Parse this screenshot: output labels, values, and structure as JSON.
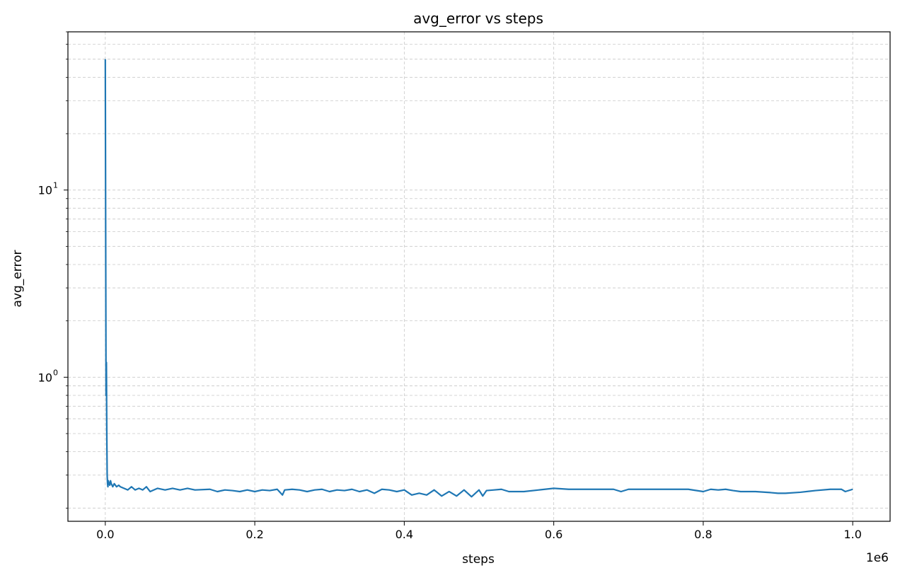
{
  "chart_data": {
    "type": "line",
    "title": "avg_error vs steps",
    "xlabel": "steps",
    "ylabel": "avg_error",
    "x_offset_label": "1e6",
    "yscale": "log",
    "grid": true,
    "line_color": "#1f77b4",
    "xlim": [
      -50000,
      1050000
    ],
    "ylim": [
      0.17,
      70
    ],
    "x_ticks": [
      {
        "value": 0,
        "label": "0.0"
      },
      {
        "value": 200000,
        "label": "0.2"
      },
      {
        "value": 400000,
        "label": "0.4"
      },
      {
        "value": 600000,
        "label": "0.6"
      },
      {
        "value": 800000,
        "label": "0.8"
      },
      {
        "value": 1000000,
        "label": "1.0"
      }
    ],
    "y_ticks": [
      {
        "value": 1,
        "base": "10",
        "exp": "0"
      },
      {
        "value": 10,
        "base": "10",
        "exp": "1"
      }
    ],
    "series": [
      {
        "x": [
          0,
          1000,
          1500,
          2000,
          2500,
          3000,
          3500,
          4000,
          5000,
          6000,
          7000,
          8000,
          10000,
          12000,
          15000,
          18000,
          20000,
          25000,
          30000,
          35000,
          40000,
          45000,
          50000,
          55000,
          60000,
          65000,
          70000,
          80000,
          90000,
          100000,
          110000,
          120000,
          140000,
          150000,
          160000,
          170000,
          180000,
          190000,
          200000,
          210000,
          220000,
          230000,
          237000,
          240000,
          250000,
          260000,
          270000,
          280000,
          290000,
          300000,
          310000,
          320000,
          330000,
          340000,
          350000,
          360000,
          370000,
          380000,
          390000,
          400000,
          410000,
          420000,
          430000,
          440000,
          450000,
          460000,
          470000,
          480000,
          490000,
          500000,
          505000,
          510000,
          520000,
          530000,
          540000,
          560000,
          580000,
          600000,
          620000,
          640000,
          660000,
          680000,
          690000,
          700000,
          720000,
          740000,
          760000,
          780000,
          800000,
          810000,
          820000,
          830000,
          840000,
          850000,
          870000,
          890000,
          900000,
          910000,
          930000,
          950000,
          970000,
          985000,
          990000,
          1000000
        ],
        "y": [
          50,
          0.8,
          1.2,
          0.5,
          0.3,
          0.27,
          0.26,
          0.28,
          0.27,
          0.265,
          0.28,
          0.27,
          0.26,
          0.27,
          0.26,
          0.265,
          0.26,
          0.255,
          0.25,
          0.26,
          0.25,
          0.255,
          0.25,
          0.26,
          0.245,
          0.25,
          0.255,
          0.25,
          0.255,
          0.25,
          0.255,
          0.25,
          0.252,
          0.245,
          0.25,
          0.248,
          0.245,
          0.25,
          0.245,
          0.25,
          0.248,
          0.252,
          0.235,
          0.25,
          0.252,
          0.25,
          0.245,
          0.25,
          0.252,
          0.245,
          0.25,
          0.248,
          0.252,
          0.245,
          0.25,
          0.24,
          0.252,
          0.25,
          0.245,
          0.25,
          0.235,
          0.24,
          0.235,
          0.25,
          0.232,
          0.245,
          0.232,
          0.25,
          0.23,
          0.25,
          0.232,
          0.248,
          0.25,
          0.252,
          0.245,
          0.245,
          0.25,
          0.255,
          0.252,
          0.252,
          0.252,
          0.252,
          0.245,
          0.252,
          0.252,
          0.252,
          0.252,
          0.252,
          0.245,
          0.252,
          0.25,
          0.252,
          0.248,
          0.245,
          0.245,
          0.242,
          0.24,
          0.24,
          0.243,
          0.248,
          0.252,
          0.252,
          0.245,
          0.252
        ]
      }
    ]
  }
}
